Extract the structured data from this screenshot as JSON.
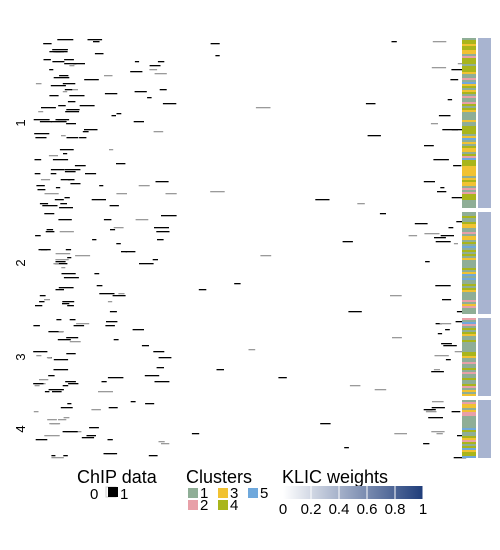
{
  "chart_data": {
    "type": "heatmap",
    "row_groups": [
      {
        "label": "1",
        "y_range": [
          38,
          208
        ]
      },
      {
        "label": "2",
        "y_range": [
          212,
          314
        ]
      },
      {
        "label": "3",
        "y_range": [
          318,
          396
        ]
      },
      {
        "label": "4",
        "y_range": [
          400,
          458
        ]
      }
    ],
    "chip_data": {
      "values": [
        0,
        1
      ],
      "colors": {
        "0": "#ffffff",
        "1": "#000000"
      },
      "note_sparse_binary_matrix": true
    },
    "clusters": {
      "labels": [
        "1",
        "2",
        "3",
        "4",
        "5"
      ],
      "colors": {
        "1": "#8fae96",
        "2": "#e8a0a8",
        "3": "#f1c232",
        "4": "#a9b51b",
        "5": "#6fa8dc"
      }
    },
    "klic_weights": {
      "min": 0,
      "max": 1,
      "ticks": [
        "0",
        "0.2",
        "0.4",
        "0.6",
        "0.8",
        "1"
      ],
      "color_low": "#ffffff",
      "color_high": "#1f3d7a",
      "bar_fill": "#a8b4d0"
    },
    "legend": {
      "chip_title": "ChIP data",
      "chip_labels": [
        "0",
        "1"
      ],
      "clusters_title": "Clusters",
      "klic_title": "KLIC weights"
    }
  }
}
